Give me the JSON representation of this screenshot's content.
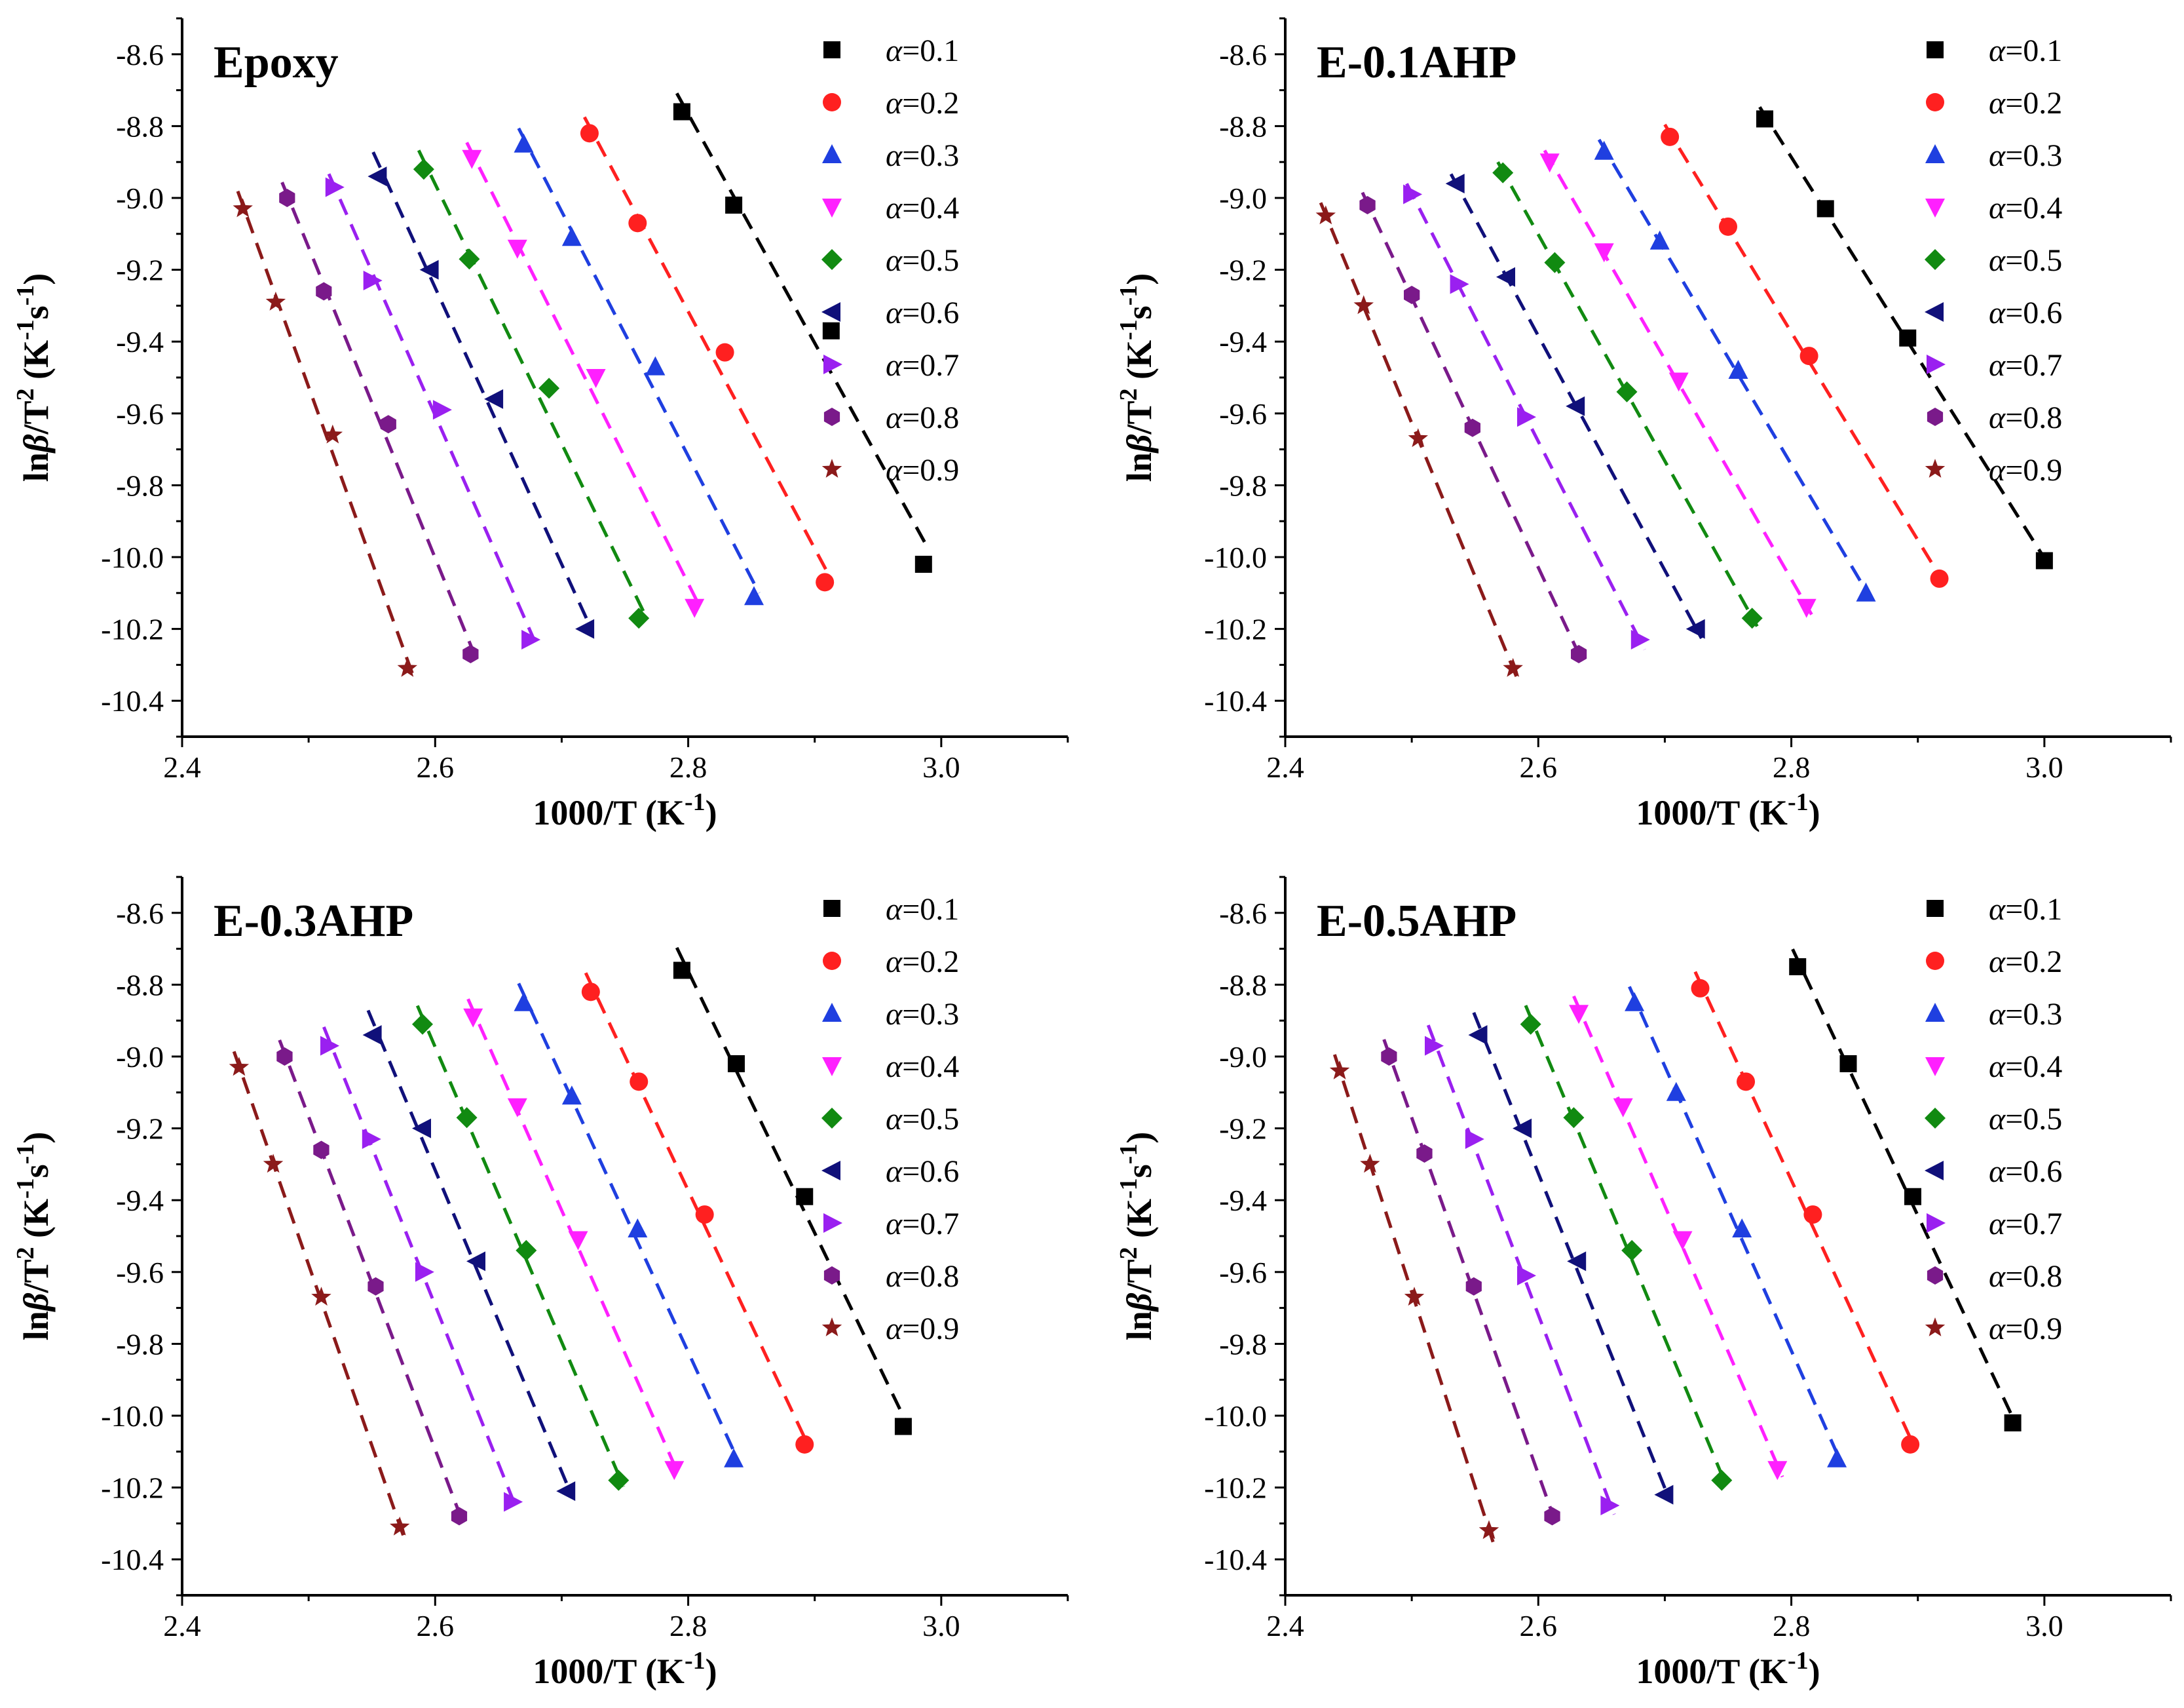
{
  "figure": {
    "colors": {
      "0.1": "#000000",
      "0.2": "#ff2020",
      "0.3": "#1f3fe0",
      "0.4": "#ff20ff",
      "0.5": "#118a11",
      "0.6": "#10107a",
      "0.7": "#9a20f0",
      "0.8": "#7a1a8a",
      "0.9": "#8b1a1a"
    },
    "markers": {
      "0.1": "square",
      "0.2": "circle",
      "0.3": "triangle-up",
      "0.4": "triangle-down",
      "0.5": "diamond",
      "0.6": "triangle-left",
      "0.7": "triangle-right",
      "0.8": "hexagon",
      "0.9": "star"
    }
  },
  "chart_data": [
    {
      "type": "scatter",
      "title": "Epoxy",
      "xlabel": "1000/T (K-1)",
      "ylabel": "lnβ/T2 (K-1s-1)",
      "xlim": [
        2.4,
        3.1
      ],
      "ylim": [
        -10.5,
        -8.5
      ],
      "xticks": [
        "2.4",
        "2.6",
        "2.8",
        "3.0"
      ],
      "yticks": [
        "-8.6",
        "-8.8",
        "-9.0",
        "-9.2",
        "-9.4",
        "-9.6",
        "-9.8",
        "-10.0",
        "-10.2",
        "-10.4"
      ],
      "legend_position": "top-right",
      "series": [
        {
          "name": "α=0.1",
          "alpha": "0.1",
          "x": [
            2.795,
            2.836,
            2.913,
            2.986
          ],
          "y": [
            -8.76,
            -9.02,
            -9.37,
            -10.02
          ]
        },
        {
          "name": "α=0.2",
          "alpha": "0.2",
          "x": [
            2.722,
            2.76,
            2.829,
            2.908
          ],
          "y": [
            -8.82,
            -9.07,
            -9.43,
            -10.07
          ]
        },
        {
          "name": "α=0.3",
          "alpha": "0.3",
          "x": [
            2.67,
            2.708,
            2.774,
            2.852
          ],
          "y": [
            -8.85,
            -9.11,
            -9.47,
            -10.11
          ]
        },
        {
          "name": "α=0.4",
          "alpha": "0.4",
          "x": [
            2.629,
            2.665,
            2.727,
            2.805
          ],
          "y": [
            -8.89,
            -9.14,
            -9.5,
            -10.14
          ]
        },
        {
          "name": "α=0.5",
          "alpha": "0.5",
          "x": [
            2.591,
            2.627,
            2.69,
            2.761
          ],
          "y": [
            -8.92,
            -9.17,
            -9.53,
            -10.17
          ]
        },
        {
          "name": "α=0.6",
          "alpha": "0.6",
          "x": [
            2.555,
            2.596,
            2.647,
            2.719
          ],
          "y": [
            -8.94,
            -9.2,
            -9.56,
            -10.2
          ]
        },
        {
          "name": "α=0.7",
          "alpha": "0.7",
          "x": [
            2.52,
            2.55,
            2.605,
            2.675
          ],
          "y": [
            -8.97,
            -9.23,
            -9.59,
            -10.23
          ]
        },
        {
          "name": "α=0.8",
          "alpha": "0.8",
          "x": [
            2.483,
            2.512,
            2.563,
            2.628
          ],
          "y": [
            -9.0,
            -9.26,
            -9.63,
            -10.27
          ]
        },
        {
          "name": "α=0.9",
          "alpha": "0.9",
          "x": [
            2.448,
            2.474,
            2.519,
            2.578
          ],
          "y": [
            -9.03,
            -9.29,
            -9.66,
            -10.31
          ]
        }
      ]
    },
    {
      "type": "scatter",
      "title": "E-0.1AHP",
      "xlabel": "1000/T (K-1)",
      "ylabel": "lnβ/T2 (K-1s-1)",
      "xlim": [
        2.4,
        3.1
      ],
      "ylim": [
        -10.5,
        -8.5
      ],
      "xticks": [
        "2.4",
        "2.6",
        "2.8",
        "3.0"
      ],
      "yticks": [
        "-8.6",
        "-8.8",
        "-9.0",
        "-9.2",
        "-9.4",
        "-9.6",
        "-9.8",
        "-10.0",
        "-10.2",
        "-10.4"
      ],
      "legend_position": "top-right",
      "series": [
        {
          "name": "α=0.1",
          "alpha": "0.1",
          "x": [
            2.779,
            2.827,
            2.892,
            3.0
          ],
          "y": [
            -8.78,
            -9.03,
            -9.39,
            -10.01
          ]
        },
        {
          "name": "α=0.2",
          "alpha": "0.2",
          "x": [
            2.704,
            2.75,
            2.814,
            2.917
          ],
          "y": [
            -8.83,
            -9.08,
            -9.44,
            -10.06
          ]
        },
        {
          "name": "α=0.3",
          "alpha": "0.3",
          "x": [
            2.652,
            2.696,
            2.758,
            2.859
          ],
          "y": [
            -8.87,
            -9.12,
            -9.48,
            -10.1
          ]
        },
        {
          "name": "α=0.4",
          "alpha": "0.4",
          "x": [
            2.609,
            2.652,
            2.711,
            2.812
          ],
          "y": [
            -8.9,
            -9.15,
            -9.51,
            -10.14
          ]
        },
        {
          "name": "α=0.5",
          "alpha": "0.5",
          "x": [
            2.572,
            2.613,
            2.67,
            2.769
          ],
          "y": [
            -8.93,
            -9.18,
            -9.54,
            -10.17
          ]
        },
        {
          "name": "α=0.6",
          "alpha": "0.6",
          "x": [
            2.535,
            2.575,
            2.63,
            2.725
          ],
          "y": [
            -8.96,
            -9.22,
            -9.58,
            -10.2
          ]
        },
        {
          "name": "α=0.7",
          "alpha": "0.7",
          "x": [
            2.5,
            2.537,
            2.59,
            2.68
          ],
          "y": [
            -8.99,
            -9.24,
            -9.61,
            -10.23
          ]
        },
        {
          "name": "α=0.8",
          "alpha": "0.8",
          "x": [
            2.465,
            2.5,
            2.548,
            2.632
          ],
          "y": [
            -9.02,
            -9.27,
            -9.64,
            -10.27
          ]
        },
        {
          "name": "α=0.9",
          "alpha": "0.9",
          "x": [
            2.432,
            2.462,
            2.505,
            2.58
          ],
          "y": [
            -9.05,
            -9.3,
            -9.67,
            -10.31
          ]
        }
      ]
    },
    {
      "type": "scatter",
      "title": "E-0.3AHP",
      "xlabel": "1000/T (K-1)",
      "ylabel": "lnβ/T2 (K-1s-1)",
      "xlim": [
        2.4,
        3.1
      ],
      "ylim": [
        -10.5,
        -8.5
      ],
      "xticks": [
        "2.4",
        "2.6",
        "2.8",
        "3.0"
      ],
      "yticks": [
        "-8.6",
        "-8.8",
        "-9.0",
        "-9.2",
        "-9.4",
        "-9.6",
        "-9.8",
        "-10.0",
        "-10.2",
        "-10.4"
      ],
      "legend_position": "top-right",
      "series": [
        {
          "name": "α=0.1",
          "alpha": "0.1",
          "x": [
            2.795,
            2.838,
            2.892,
            2.97
          ],
          "y": [
            -8.76,
            -9.02,
            -9.39,
            -10.03
          ]
        },
        {
          "name": "α=0.2",
          "alpha": "0.2",
          "x": [
            2.723,
            2.761,
            2.813,
            2.892
          ],
          "y": [
            -8.82,
            -9.07,
            -9.44,
            -10.08
          ]
        },
        {
          "name": "α=0.3",
          "alpha": "0.3",
          "x": [
            2.67,
            2.708,
            2.76,
            2.836
          ],
          "y": [
            -8.85,
            -9.11,
            -9.48,
            -10.12
          ]
        },
        {
          "name": "α=0.4",
          "alpha": "0.4",
          "x": [
            2.63,
            2.665,
            2.713,
            2.789
          ],
          "y": [
            -8.89,
            -9.14,
            -9.51,
            -10.15
          ]
        },
        {
          "name": "α=0.5",
          "alpha": "0.5",
          "x": [
            2.59,
            2.625,
            2.672,
            2.745
          ],
          "y": [
            -8.91,
            -9.17,
            -9.54,
            -10.18
          ]
        },
        {
          "name": "α=0.6",
          "alpha": "0.6",
          "x": [
            2.551,
            2.59,
            2.633,
            2.704
          ],
          "y": [
            -8.94,
            -9.2,
            -9.57,
            -10.21
          ]
        },
        {
          "name": "α=0.7",
          "alpha": "0.7",
          "x": [
            2.516,
            2.549,
            2.591,
            2.661
          ],
          "y": [
            -8.97,
            -9.23,
            -9.6,
            -10.24
          ]
        },
        {
          "name": "α=0.8",
          "alpha": "0.8",
          "x": [
            2.481,
            2.51,
            2.553,
            2.619
          ],
          "y": [
            -9.0,
            -9.26,
            -9.64,
            -10.28
          ]
        },
        {
          "name": "α=0.9",
          "alpha": "0.9",
          "x": [
            2.445,
            2.472,
            2.51,
            2.572
          ],
          "y": [
            -9.03,
            -9.3,
            -9.67,
            -10.31
          ]
        }
      ]
    },
    {
      "type": "scatter",
      "title": "E-0.5AHP",
      "xlabel": "1000/T (K-1)",
      "ylabel": "lnβ/T2 (K-1s-1)",
      "xlim": [
        2.4,
        3.1
      ],
      "ylim": [
        -10.5,
        -8.5
      ],
      "xticks": [
        "2.4",
        "2.6",
        "2.8",
        "3.0"
      ],
      "yticks": [
        "-8.6",
        "-8.8",
        "-9.0",
        "-9.2",
        "-9.4",
        "-9.6",
        "-9.8",
        "-10.0",
        "-10.2",
        "-10.4"
      ],
      "legend_position": "top-right",
      "series": [
        {
          "name": "α=0.1",
          "alpha": "0.1",
          "x": [
            2.805,
            2.845,
            2.896,
            2.975
          ],
          "y": [
            -8.75,
            -9.02,
            -9.39,
            -10.02
          ]
        },
        {
          "name": "α=0.2",
          "alpha": "0.2",
          "x": [
            2.728,
            2.764,
            2.817,
            2.894
          ],
          "y": [
            -8.81,
            -9.07,
            -9.44,
            -10.08
          ]
        },
        {
          "name": "α=0.3",
          "alpha": "0.3",
          "x": [
            2.676,
            2.709,
            2.761,
            2.836
          ],
          "y": [
            -8.85,
            -9.1,
            -9.48,
            -10.12
          ]
        },
        {
          "name": "α=0.4",
          "alpha": "0.4",
          "x": [
            2.632,
            2.667,
            2.714,
            2.789
          ],
          "y": [
            -8.88,
            -9.14,
            -9.51,
            -10.15
          ]
        },
        {
          "name": "α=0.5",
          "alpha": "0.5",
          "x": [
            2.594,
            2.628,
            2.674,
            2.745
          ],
          "y": [
            -8.91,
            -9.17,
            -9.54,
            -10.18
          ]
        },
        {
          "name": "α=0.6",
          "alpha": "0.6",
          "x": [
            2.553,
            2.588,
            2.631,
            2.7
          ],
          "y": [
            -8.94,
            -9.2,
            -9.57,
            -10.22
          ]
        },
        {
          "name": "α=0.7",
          "alpha": "0.7",
          "x": [
            2.517,
            2.549,
            2.59,
            2.656
          ],
          "y": [
            -8.97,
            -9.23,
            -9.61,
            -10.25
          ]
        },
        {
          "name": "α=0.8",
          "alpha": "0.8",
          "x": [
            2.482,
            2.51,
            2.549,
            2.611
          ],
          "y": [
            -9.0,
            -9.27,
            -9.64,
            -10.28
          ]
        },
        {
          "name": "α=0.9",
          "alpha": "0.9",
          "x": [
            2.443,
            2.467,
            2.502,
            2.561
          ],
          "y": [
            -9.04,
            -9.3,
            -9.67,
            -10.32
          ]
        }
      ]
    }
  ]
}
